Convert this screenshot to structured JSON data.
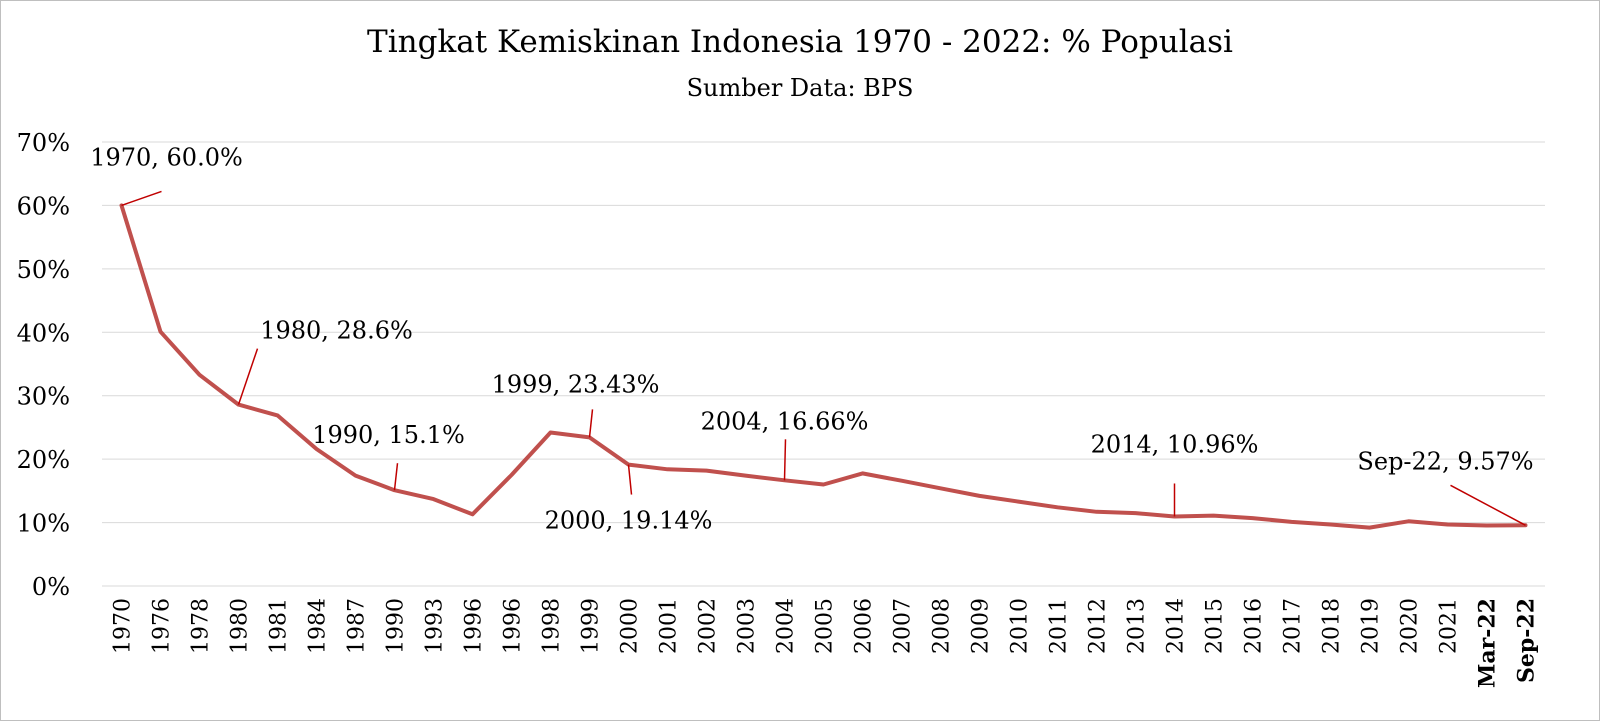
{
  "chart_data": {
    "type": "line",
    "title": "Tingkat Kemiskinan Indonesia 1970 - 2022: % Populasi",
    "subtitle": "Sumber Data: BPS",
    "xlabel": "",
    "ylabel": "",
    "ylim": [
      0,
      70
    ],
    "yticks": [
      "0%",
      "10%",
      "20%",
      "30%",
      "40%",
      "50%",
      "60%",
      "70%"
    ],
    "grid": true,
    "line_color": "#c0504d",
    "categories": [
      "1970",
      "1976",
      "1978",
      "1980",
      "1981",
      "1984",
      "1987",
      "1990",
      "1993",
      "1996",
      "1996",
      "1998",
      "1999",
      "2000",
      "2001",
      "2002",
      "2003",
      "2004",
      "2005",
      "2006",
      "2007",
      "2008",
      "2009",
      "2010",
      "2011",
      "2012",
      "2013",
      "2014",
      "2015",
      "2016",
      "2017",
      "2018",
      "2019",
      "2020",
      "2021",
      "Mar-22",
      "Sep-22"
    ],
    "bold_categories": [
      "Mar-22",
      "Sep-22"
    ],
    "series": [
      {
        "values": [
          60.0,
          40.1,
          33.3,
          28.6,
          26.9,
          21.6,
          17.4,
          15.1,
          13.7,
          11.3,
          17.5,
          24.2,
          23.43,
          19.14,
          18.4,
          18.2,
          17.4,
          16.66,
          16.0,
          17.75,
          16.6,
          15.4,
          14.2,
          13.3,
          12.4,
          11.7,
          11.5,
          10.96,
          11.1,
          10.7,
          10.1,
          9.7,
          9.2,
          10.2,
          9.7,
          9.54,
          9.57
        ]
      }
    ],
    "annotations": [
      {
        "index": 0,
        "text": "1970, 60.0%"
      },
      {
        "index": 3,
        "text": "1980, 28.6%"
      },
      {
        "index": 7,
        "text": "1990, 15.1%"
      },
      {
        "index": 12,
        "text": "1999, 23.43%"
      },
      {
        "index": 13,
        "text": "2000, 19.14%"
      },
      {
        "index": 17,
        "text": "2004, 16.66%"
      },
      {
        "index": 27,
        "text": "2014, 10.96%"
      },
      {
        "index": 36,
        "text": "Sep-22, 9.57%"
      }
    ]
  }
}
